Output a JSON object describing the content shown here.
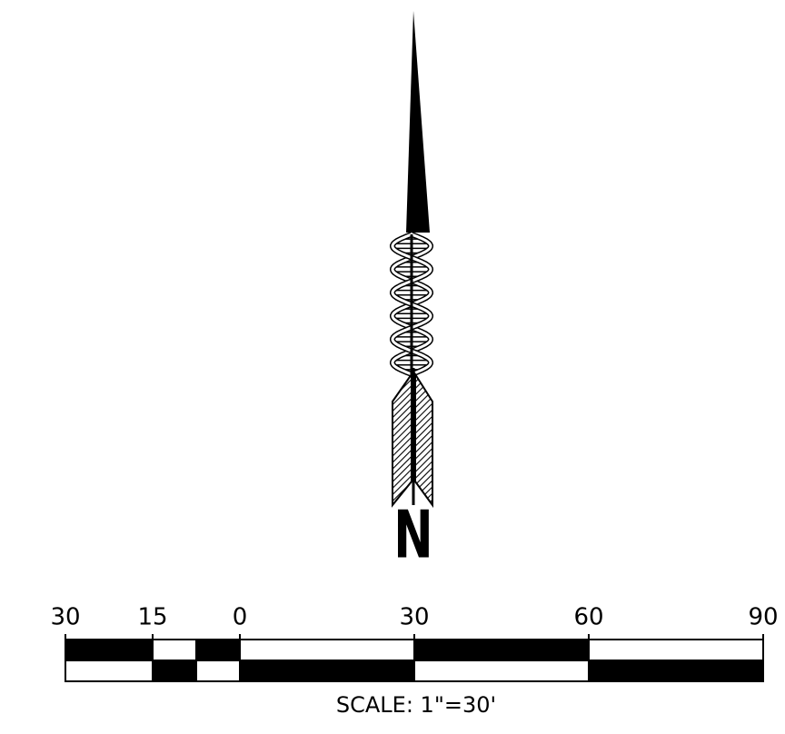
{
  "north_label": "N",
  "scale_bar": {
    "ticks": [
      {
        "value": -30,
        "label": "30"
      },
      {
        "value": -15,
        "label": "15"
      },
      0,
      30,
      60,
      90
    ],
    "caption": "SCALE:  1\"=30'"
  }
}
